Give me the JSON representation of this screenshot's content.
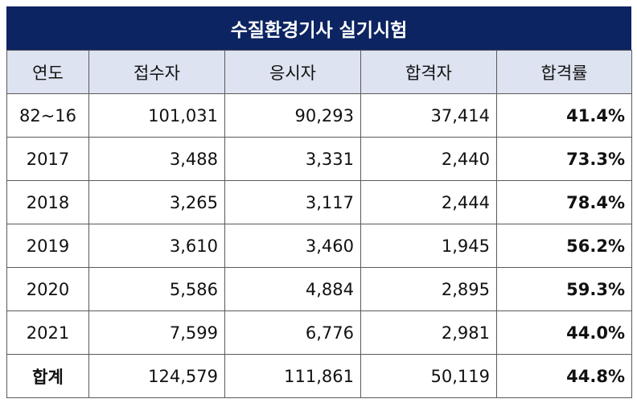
{
  "title": "수질환경기사 실기시험",
  "headers": [
    "연도",
    "접수자",
    "응시자",
    "합격자",
    "합격률"
  ],
  "rows": [
    {
      "year": "82~16",
      "applied": "101,031",
      "taken": "90,293",
      "passed": "37,414",
      "rate": "41.4%"
    },
    {
      "year": "2017",
      "applied": "3,488",
      "taken": "3,331",
      "passed": "2,440",
      "rate": "73.3%"
    },
    {
      "year": "2018",
      "applied": "3,265",
      "taken": "3,117",
      "passed": "2,444",
      "rate": "78.4%"
    },
    {
      "year": "2019",
      "applied": "3,610",
      "taken": "3,460",
      "passed": "1,945",
      "rate": "56.2%"
    },
    {
      "year": "2020",
      "applied": "5,586",
      "taken": "4,884",
      "passed": "2,895",
      "rate": "59.3%"
    },
    {
      "year": "2021",
      "applied": "7,599",
      "taken": "6,776",
      "passed": "2,981",
      "rate": "44.0%"
    }
  ],
  "total": {
    "year": "합계",
    "applied": "124,579",
    "taken": "111,861",
    "passed": "50,119",
    "rate": "44.8%"
  },
  "colors": {
    "title_bg": "#0c2461",
    "header_bg": "#dde3f0",
    "border": "#5a5a5a"
  }
}
